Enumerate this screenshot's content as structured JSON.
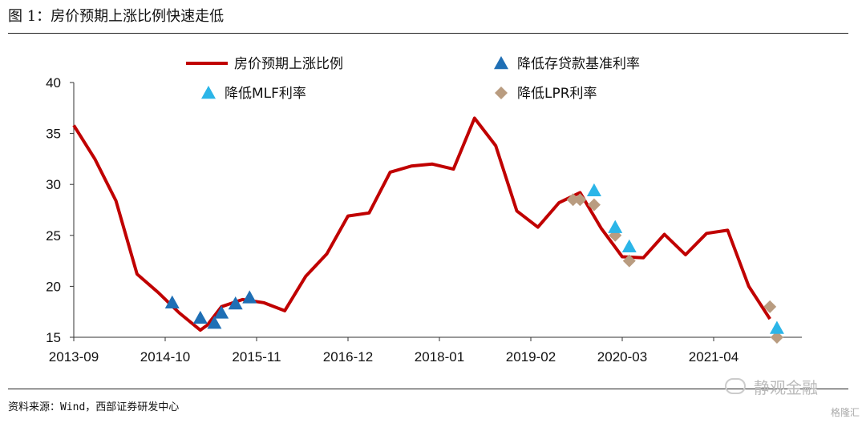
{
  "figure": {
    "title": "图 1：房价预期上涨比例快速走低",
    "source": "资料来源：Wind，西部证券研发中心",
    "watermark": "静观金融",
    "corner_logo": "格隆汇"
  },
  "chart_data": {
    "type": "line",
    "title": "",
    "xlabel": "",
    "ylabel": "",
    "ylim": [
      15,
      40
    ],
    "yticks": [
      15,
      20,
      25,
      30,
      35,
      40
    ],
    "x_ticks": [
      "2013-09",
      "2014-10",
      "2015-11",
      "2016-12",
      "2018-01",
      "2019-02",
      "2020-03",
      "2021-04"
    ],
    "legend_position": "top",
    "colors": {
      "line": "#c00000",
      "deposit_rate_cut": "#1f6fb5",
      "mlf_cut": "#2bb5e8",
      "lpr_cut": "#b99c80"
    },
    "series": [
      {
        "name": "房价预期上涨比例",
        "kind": "line",
        "color": "#c00000",
        "points": [
          [
            "2013-09",
            35.8
          ],
          [
            "2013-12",
            32.5
          ],
          [
            "2014-03",
            28.4
          ],
          [
            "2014-06",
            21.2
          ],
          [
            "2014-09",
            19.4
          ],
          [
            "2014-12",
            17.4
          ],
          [
            "2015-03",
            15.7
          ],
          [
            "2015-04",
            16.2
          ],
          [
            "2015-06",
            18.0
          ],
          [
            "2015-09",
            18.7
          ],
          [
            "2015-12",
            18.4
          ],
          [
            "2016-03",
            17.6
          ],
          [
            "2016-06",
            21.0
          ],
          [
            "2016-09",
            23.2
          ],
          [
            "2016-12",
            26.9
          ],
          [
            "2017-03",
            27.2
          ],
          [
            "2017-06",
            31.2
          ],
          [
            "2017-09",
            31.8
          ],
          [
            "2017-12",
            32.0
          ],
          [
            "2018-03",
            31.5
          ],
          [
            "2018-06",
            36.5
          ],
          [
            "2018-09",
            33.8
          ],
          [
            "2018-12",
            27.4
          ],
          [
            "2019-03",
            25.8
          ],
          [
            "2019-06",
            28.2
          ],
          [
            "2019-09",
            29.2
          ],
          [
            "2019-12",
            25.7
          ],
          [
            "2020-03",
            22.9
          ],
          [
            "2020-06",
            22.8
          ],
          [
            "2020-09",
            25.1
          ],
          [
            "2020-12",
            23.1
          ],
          [
            "2021-03",
            25.2
          ],
          [
            "2021-06",
            25.5
          ],
          [
            "2021-09",
            20.0
          ],
          [
            "2021-12",
            16.8
          ]
        ]
      },
      {
        "name": "降低存贷款基准利率",
        "kind": "marker",
        "marker": "triangle",
        "color": "#1f6fb5",
        "points": [
          [
            "2014-11",
            18.4
          ],
          [
            "2015-03",
            16.9
          ],
          [
            "2015-05",
            16.4
          ],
          [
            "2015-06",
            17.4
          ],
          [
            "2015-08",
            18.3
          ],
          [
            "2015-10",
            18.9
          ]
        ]
      },
      {
        "name": "降低MLF利率",
        "kind": "marker",
        "marker": "triangle",
        "color": "#2bb5e8",
        "points": [
          [
            "2019-11",
            29.4
          ],
          [
            "2020-02",
            25.8
          ],
          [
            "2020-04",
            23.9
          ],
          [
            "2022-01",
            15.9
          ]
        ]
      },
      {
        "name": "降低LPR利率",
        "kind": "marker",
        "marker": "diamond",
        "color": "#b99c80",
        "points": [
          [
            "2019-08",
            28.5
          ],
          [
            "2019-09",
            28.5
          ],
          [
            "2019-11",
            28.0
          ],
          [
            "2020-02",
            25.0
          ],
          [
            "2020-04",
            22.5
          ],
          [
            "2021-12",
            18.0
          ],
          [
            "2022-01",
            15.0
          ]
        ]
      }
    ]
  }
}
